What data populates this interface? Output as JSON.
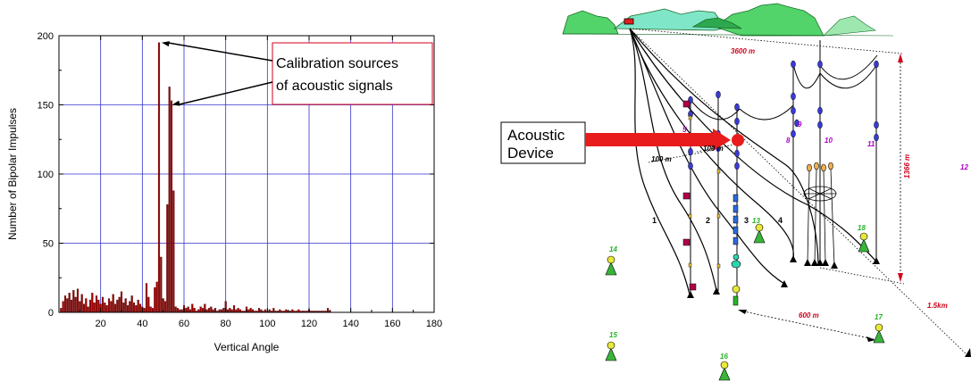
{
  "chart_data": {
    "type": "bar",
    "xlabel": "Vertical Angle",
    "ylabel": "Number of Bipolar Impulses",
    "xlim": [
      0,
      180
    ],
    "ylim": [
      0,
      200
    ],
    "xticks": [
      20,
      40,
      60,
      80,
      100,
      120,
      140,
      160,
      180
    ],
    "yticks": [
      0,
      50,
      100,
      150,
      200
    ],
    "grid": true,
    "bar_color": "#a00000",
    "grid_color": "#3333cc",
    "x": [
      1,
      2,
      3,
      4,
      5,
      6,
      7,
      8,
      9,
      10,
      11,
      12,
      13,
      14,
      15,
      16,
      17,
      18,
      19,
      20,
      21,
      22,
      23,
      24,
      25,
      26,
      27,
      28,
      29,
      30,
      31,
      32,
      33,
      34,
      35,
      36,
      37,
      38,
      39,
      40,
      41,
      42,
      43,
      44,
      45,
      46,
      47,
      48,
      49,
      50,
      51,
      52,
      53,
      54,
      55,
      56,
      57,
      58,
      59,
      60,
      61,
      62,
      63,
      64,
      65,
      66,
      67,
      68,
      69,
      70,
      71,
      72,
      73,
      74,
      75,
      76,
      77,
      78,
      79,
      80,
      81,
      82,
      83,
      84,
      85,
      86,
      87,
      88,
      89,
      90,
      91,
      92,
      93,
      94,
      95,
      96,
      97,
      98,
      99,
      100,
      101,
      102,
      103,
      104,
      105,
      106,
      107,
      108,
      109,
      110,
      111,
      112,
      113,
      114,
      115,
      116,
      117,
      118,
      119,
      120,
      121,
      122,
      123,
      124,
      125,
      126,
      127,
      128,
      129,
      130
    ],
    "values": [
      3,
      8,
      12,
      10,
      14,
      9,
      16,
      11,
      17,
      8,
      13,
      6,
      10,
      4,
      9,
      14,
      7,
      12,
      9,
      6,
      11,
      7,
      5,
      10,
      8,
      13,
      6,
      9,
      11,
      15,
      7,
      10,
      5,
      8,
      12,
      7,
      5,
      9,
      6,
      4,
      3,
      21,
      11,
      4,
      3,
      18,
      22,
      195,
      40,
      10,
      8,
      78,
      163,
      153,
      88,
      4,
      3,
      2,
      2,
      5,
      3,
      4,
      2,
      6,
      3,
      1,
      2,
      4,
      3,
      6,
      2,
      3,
      4,
      2,
      3,
      1,
      2,
      2,
      3,
      8,
      2,
      3,
      2,
      5,
      2,
      3,
      2,
      1,
      1,
      4,
      2,
      3,
      2,
      1,
      1,
      3,
      2,
      1,
      2,
      1,
      2,
      1,
      3,
      1,
      1,
      2,
      1,
      1,
      2,
      1,
      1,
      2,
      1,
      1,
      2,
      1,
      1,
      1,
      1,
      2,
      1,
      1,
      1,
      1,
      1,
      1,
      1,
      1,
      3,
      1
    ],
    "annotations": [
      {
        "text_lines": [
          "Calibration sources",
          "of acoustic signals"
        ],
        "targets_x": [
          48,
          53
        ],
        "targets_y": [
          195,
          150
        ]
      }
    ]
  },
  "diagram": {
    "callout": {
      "lines": [
        "Acoustic",
        "Device"
      ]
    },
    "labels": {
      "dist_3600": "3600 m",
      "dist_1366": "1366 m",
      "dist_600": "600 m",
      "dist_1500": "1.5km",
      "dist_100a": "100 m",
      "dist_100b": "100 m"
    },
    "string_numbers": [
      "1",
      "2",
      "3",
      "4"
    ],
    "purple_numbers": [
      "5",
      "8",
      "9",
      "10",
      "11",
      "12"
    ],
    "green_numbers": [
      "13",
      "14",
      "15",
      "16",
      "17",
      "18"
    ]
  }
}
